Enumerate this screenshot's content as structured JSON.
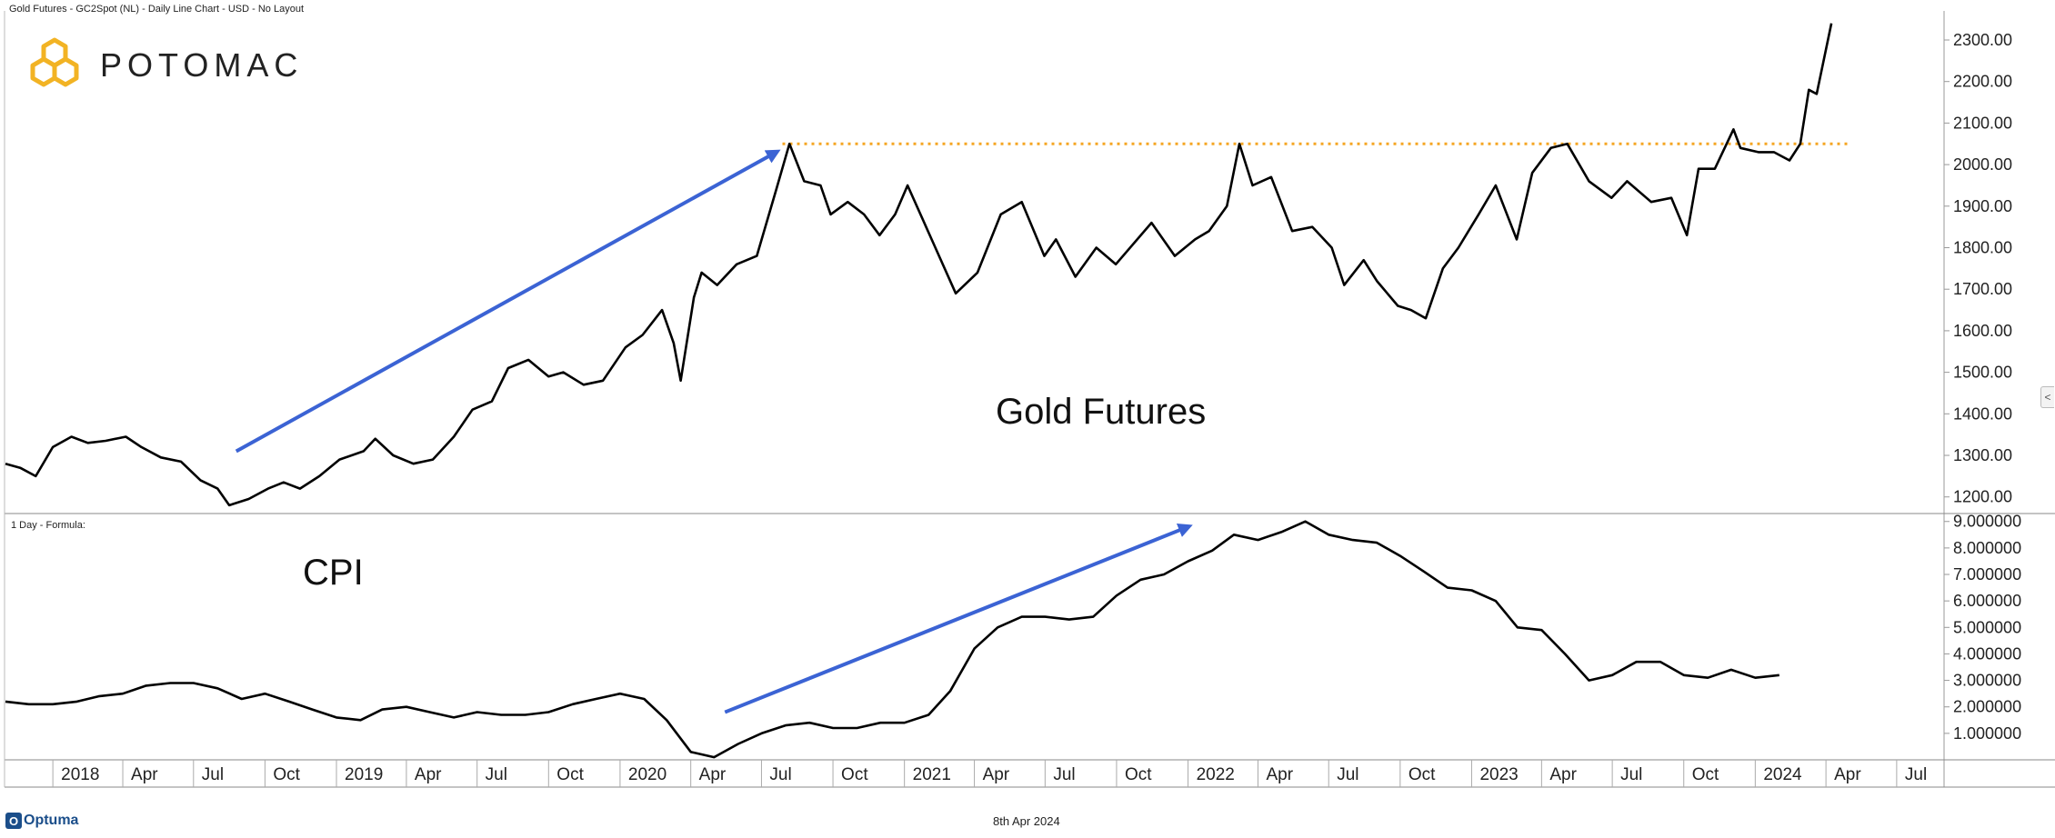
{
  "header": {
    "title": "Gold Futures - GC2Spot (NL) - Daily Line Chart - USD - No Layout"
  },
  "brand": {
    "name": "POTOMAC"
  },
  "lower_panel": {
    "label": "1 Day - Formula:"
  },
  "footer": {
    "date": "8th Apr 2024",
    "vendor": "Optuma",
    "vendor_icon_letter": "O"
  },
  "collapse_icon": "<",
  "colors": {
    "line": "#000000",
    "arrow": "#3b63d4",
    "resistance": "#f5a623",
    "gold": "#f2b324",
    "axis": "#999999"
  },
  "chart_data": [
    {
      "type": "line",
      "annotation": "Gold Futures",
      "ylim": [
        1160,
        2370
      ],
      "yticks": [
        "1200.00",
        "1300.00",
        "1400.00",
        "1500.00",
        "1600.00",
        "1700.00",
        "1800.00",
        "1900.00",
        "2000.00",
        "2100.00",
        "2200.00",
        "2300.00"
      ],
      "resistance_level": 2050,
      "trend_arrow": {
        "from": [
          "2018-08-25",
          1310
        ],
        "to": [
          "2020-07-20",
          2030
        ]
      },
      "series": [
        {
          "x": [
            "2017-11-01",
            "2017-11-20",
            "2017-12-10",
            "2018-01-01",
            "2018-01-25",
            "2018-02-15",
            "2018-03-10",
            "2018-04-05",
            "2018-04-25",
            "2018-05-20",
            "2018-06-15",
            "2018-07-10",
            "2018-08-01",
            "2018-08-16",
            "2018-09-10",
            "2018-10-05",
            "2018-10-25",
            "2018-11-15",
            "2018-12-10",
            "2019-01-05",
            "2019-02-05",
            "2019-02-20",
            "2019-03-15",
            "2019-04-10",
            "2019-05-05",
            "2019-06-01",
            "2019-06-25",
            "2019-07-20",
            "2019-08-10",
            "2019-09-05",
            "2019-10-01",
            "2019-10-20",
            "2019-11-15",
            "2019-12-10",
            "2020-01-08",
            "2020-01-30",
            "2020-02-24",
            "2020-03-10",
            "2020-03-19",
            "2020-04-05",
            "2020-04-15",
            "2020-05-05",
            "2020-05-30",
            "2020-06-25",
            "2020-07-20",
            "2020-08-06",
            "2020-08-25",
            "2020-09-15",
            "2020-09-28",
            "2020-10-20",
            "2020-11-10",
            "2020-11-30",
            "2020-12-20",
            "2021-01-05",
            "2021-02-05",
            "2021-03-08",
            "2021-04-05",
            "2021-05-05",
            "2021-06-01",
            "2021-06-30",
            "2021-07-15",
            "2021-08-09",
            "2021-09-05",
            "2021-09-30",
            "2021-11-15",
            "2021-12-15",
            "2022-01-10",
            "2022-01-28",
            "2022-02-20",
            "2022-03-08",
            "2022-03-25",
            "2022-04-18",
            "2022-05-15",
            "2022-06-10",
            "2022-07-05",
            "2022-07-21",
            "2022-08-15",
            "2022-09-01",
            "2022-09-28",
            "2022-10-15",
            "2022-11-03",
            "2022-11-25",
            "2022-12-15",
            "2023-01-10",
            "2023-02-01",
            "2023-02-28",
            "2023-03-20",
            "2023-04-13",
            "2023-05-04",
            "2023-06-01",
            "2023-06-30",
            "2023-07-20",
            "2023-08-20",
            "2023-09-15",
            "2023-10-05",
            "2023-10-20",
            "2023-11-10",
            "2023-12-04",
            "2023-12-13",
            "2024-01-05",
            "2024-01-25",
            "2024-02-14",
            "2024-02-28",
            "2024-03-10",
            "2024-03-20",
            "2024-04-08"
          ],
          "values": [
            1280,
            1270,
            1250,
            1320,
            1345,
            1330,
            1335,
            1345,
            1320,
            1295,
            1285,
            1240,
            1220,
            1180,
            1195,
            1220,
            1235,
            1220,
            1250,
            1290,
            1310,
            1340,
            1300,
            1280,
            1290,
            1345,
            1410,
            1430,
            1510,
            1530,
            1490,
            1500,
            1470,
            1480,
            1560,
            1590,
            1650,
            1570,
            1480,
            1680,
            1740,
            1710,
            1760,
            1780,
            1940,
            2050,
            1960,
            1950,
            1880,
            1910,
            1880,
            1830,
            1880,
            1950,
            1820,
            1690,
            1740,
            1880,
            1910,
            1780,
            1820,
            1730,
            1800,
            1760,
            1860,
            1780,
            1820,
            1840,
            1900,
            2050,
            1950,
            1970,
            1840,
            1850,
            1800,
            1710,
            1770,
            1720,
            1660,
            1650,
            1630,
            1750,
            1800,
            1880,
            1950,
            1820,
            1980,
            2040,
            2050,
            1960,
            1920,
            1960,
            1910,
            1920,
            1830,
            1990,
            1990,
            2085,
            2040,
            2030,
            2030,
            2010,
            2050,
            2180,
            2170,
            2340
          ]
        }
      ]
    },
    {
      "type": "line",
      "annotation": "CPI",
      "ylim": [
        0,
        9.3
      ],
      "yticks": [
        "1.000000",
        "2.000000",
        "3.000000",
        "4.000000",
        "5.000000",
        "6.000000",
        "7.000000",
        "8.000000",
        "9.000000"
      ],
      "trend_arrow": {
        "from": [
          "2020-05-15",
          1.8
        ],
        "to": [
          "2022-01-01",
          8.8
        ]
      },
      "series": [
        {
          "x": [
            "2017-11-01",
            "2017-12-01",
            "2018-01-01",
            "2018-02-01",
            "2018-03-01",
            "2018-04-01",
            "2018-05-01",
            "2018-06-01",
            "2018-07-01",
            "2018-08-01",
            "2018-09-01",
            "2018-10-01",
            "2018-11-01",
            "2018-12-01",
            "2019-01-01",
            "2019-02-01",
            "2019-03-01",
            "2019-04-01",
            "2019-05-01",
            "2019-06-01",
            "2019-07-01",
            "2019-08-01",
            "2019-09-01",
            "2019-10-01",
            "2019-11-01",
            "2019-12-01",
            "2020-01-01",
            "2020-02-01",
            "2020-03-01",
            "2020-04-01",
            "2020-05-01",
            "2020-06-01",
            "2020-07-01",
            "2020-08-01",
            "2020-09-01",
            "2020-10-01",
            "2020-11-01",
            "2020-12-01",
            "2021-01-01",
            "2021-02-01",
            "2021-03-01",
            "2021-04-01",
            "2021-05-01",
            "2021-06-01",
            "2021-07-01",
            "2021-08-01",
            "2021-09-01",
            "2021-10-01",
            "2021-11-01",
            "2021-12-01",
            "2022-01-01",
            "2022-02-01",
            "2022-03-01",
            "2022-04-01",
            "2022-05-01",
            "2022-06-01",
            "2022-07-01",
            "2022-08-01",
            "2022-09-01",
            "2022-10-01",
            "2022-11-01",
            "2022-12-01",
            "2023-01-01",
            "2023-02-01",
            "2023-03-01",
            "2023-04-01",
            "2023-05-01",
            "2023-06-01",
            "2023-07-01",
            "2023-08-01",
            "2023-09-01",
            "2023-10-01",
            "2023-11-01",
            "2023-12-01",
            "2024-01-01",
            "2024-02-01"
          ],
          "values": [
            2.2,
            2.1,
            2.1,
            2.2,
            2.4,
            2.5,
            2.8,
            2.9,
            2.9,
            2.7,
            2.3,
            2.5,
            2.2,
            1.9,
            1.6,
            1.5,
            1.9,
            2.0,
            1.8,
            1.6,
            1.8,
            1.7,
            1.7,
            1.8,
            2.1,
            2.3,
            2.5,
            2.3,
            1.5,
            0.3,
            0.1,
            0.6,
            1.0,
            1.3,
            1.4,
            1.2,
            1.2,
            1.4,
            1.4,
            1.7,
            2.6,
            4.2,
            5.0,
            5.4,
            5.4,
            5.3,
            5.4,
            6.2,
            6.8,
            7.0,
            7.5,
            7.9,
            8.5,
            8.3,
            8.6,
            9.0,
            8.5,
            8.3,
            8.2,
            7.7,
            7.1,
            6.5,
            6.4,
            6.0,
            5.0,
            4.9,
            4.0,
            3.0,
            3.2,
            3.7,
            3.7,
            3.2,
            3.1,
            3.4,
            3.1,
            3.2
          ]
        }
      ]
    }
  ],
  "x_axis": {
    "ticks": [
      {
        "label": "2018",
        "date": "2018-01-01"
      },
      {
        "label": "Apr",
        "date": "2018-04-01"
      },
      {
        "label": "Jul",
        "date": "2018-07-01"
      },
      {
        "label": "Oct",
        "date": "2018-10-01"
      },
      {
        "label": "2019",
        "date": "2019-01-01"
      },
      {
        "label": "Apr",
        "date": "2019-04-01"
      },
      {
        "label": "Jul",
        "date": "2019-07-01"
      },
      {
        "label": "Oct",
        "date": "2019-10-01"
      },
      {
        "label": "2020",
        "date": "2020-01-01"
      },
      {
        "label": "Apr",
        "date": "2020-04-01"
      },
      {
        "label": "Jul",
        "date": "2020-07-01"
      },
      {
        "label": "Oct",
        "date": "2020-10-01"
      },
      {
        "label": "2021",
        "date": "2021-01-01"
      },
      {
        "label": "Apr",
        "date": "2021-04-01"
      },
      {
        "label": "Jul",
        "date": "2021-07-01"
      },
      {
        "label": "Oct",
        "date": "2021-10-01"
      },
      {
        "label": "2022",
        "date": "2022-01-01"
      },
      {
        "label": "Apr",
        "date": "2022-04-01"
      },
      {
        "label": "Jul",
        "date": "2022-07-01"
      },
      {
        "label": "Oct",
        "date": "2022-10-01"
      },
      {
        "label": "2023",
        "date": "2023-01-01"
      },
      {
        "label": "Apr",
        "date": "2023-04-01"
      },
      {
        "label": "Jul",
        "date": "2023-07-01"
      },
      {
        "label": "Oct",
        "date": "2023-10-01"
      },
      {
        "label": "2024",
        "date": "2024-01-01"
      },
      {
        "label": "Apr",
        "date": "2024-04-01"
      },
      {
        "label": "Jul",
        "date": "2024-07-01"
      }
    ]
  }
}
